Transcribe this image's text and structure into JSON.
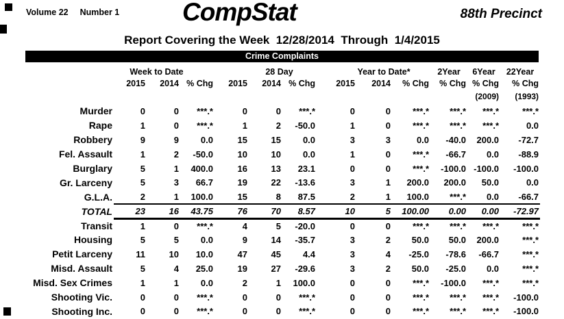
{
  "header": {
    "volume_label": "Volume 22",
    "number_label": "Number 1",
    "title": "CompStat",
    "precinct": "88th Precinct",
    "report_line": "Report Covering the Week  12/28/2014  Through  1/4/2015",
    "section_bar": "Crime Complaints"
  },
  "table": {
    "columns": {
      "group_week": "Week to Date",
      "group_28day": "28 Day",
      "group_ytd": "Year to Date*",
      "group_2year": "2Year",
      "group_6year": "6Year",
      "group_22year": "22Year",
      "sub_2015": "2015",
      "sub_2014": "2014",
      "sub_pct": "% Chg",
      "note_2009": "(2009)",
      "note_1993": "(1993)"
    },
    "rows": [
      {
        "label": "Murder",
        "total": false,
        "values": [
          "0",
          "0",
          "***.*",
          "0",
          "0",
          "***.*",
          "0",
          "0",
          "***.*",
          "***.*",
          "***.*",
          "***.*"
        ]
      },
      {
        "label": "Rape",
        "total": false,
        "values": [
          "1",
          "0",
          "***.*",
          "1",
          "2",
          "-50.0",
          "1",
          "0",
          "***.*",
          "***.*",
          "***.*",
          "0.0"
        ]
      },
      {
        "label": "Robbery",
        "total": false,
        "values": [
          "9",
          "9",
          "0.0",
          "15",
          "15",
          "0.0",
          "3",
          "3",
          "0.0",
          "-40.0",
          "200.0",
          "-72.7"
        ]
      },
      {
        "label": "Fel. Assault",
        "total": false,
        "values": [
          "1",
          "2",
          "-50.0",
          "10",
          "10",
          "0.0",
          "1",
          "0",
          "***.*",
          "-66.7",
          "0.0",
          "-88.9"
        ]
      },
      {
        "label": "Burglary",
        "total": false,
        "values": [
          "5",
          "1",
          "400.0",
          "16",
          "13",
          "23.1",
          "0",
          "0",
          "***.*",
          "-100.0",
          "-100.0",
          "-100.0"
        ]
      },
      {
        "label": "Gr. Larceny",
        "total": false,
        "values": [
          "5",
          "3",
          "66.7",
          "19",
          "22",
          "-13.6",
          "3",
          "1",
          "200.0",
          "200.0",
          "50.0",
          "0.0"
        ]
      },
      {
        "label": "G.L.A.",
        "total": false,
        "values": [
          "2",
          "1",
          "100.0",
          "15",
          "8",
          "87.5",
          "2",
          "1",
          "100.0",
          "***.*",
          "0.0",
          "-66.7"
        ]
      },
      {
        "label": "TOTAL",
        "total": true,
        "values": [
          "23",
          "16",
          "43.75",
          "76",
          "70",
          "8.57",
          "10",
          "5",
          "100.00",
          "0.00",
          "0.00",
          "-72.97"
        ]
      },
      {
        "label": "Transit",
        "total": false,
        "values": [
          "1",
          "0",
          "***.*",
          "4",
          "5",
          "-20.0",
          "0",
          "0",
          "***.*",
          "***.*",
          "***.*",
          "***.*"
        ]
      },
      {
        "label": "Housing",
        "total": false,
        "values": [
          "5",
          "5",
          "0.0",
          "9",
          "14",
          "-35.7",
          "3",
          "2",
          "50.0",
          "50.0",
          "200.0",
          "***.*"
        ]
      },
      {
        "label": "Petit Larceny",
        "total": false,
        "values": [
          "11",
          "10",
          "10.0",
          "47",
          "45",
          "4.4",
          "3",
          "4",
          "-25.0",
          "-78.6",
          "-66.7",
          "***.*"
        ]
      },
      {
        "label": "Misd. Assault",
        "total": false,
        "values": [
          "5",
          "4",
          "25.0",
          "19",
          "27",
          "-29.6",
          "3",
          "2",
          "50.0",
          "-25.0",
          "0.0",
          "***.*"
        ]
      },
      {
        "label": "Misd. Sex Crimes",
        "total": false,
        "values": [
          "1",
          "1",
          "0.0",
          "2",
          "1",
          "100.0",
          "0",
          "0",
          "***.*",
          "-100.0",
          "***.*",
          "***.*"
        ]
      },
      {
        "label": "Shooting Vic.",
        "total": false,
        "values": [
          "0",
          "0",
          "***.*",
          "0",
          "0",
          "***.*",
          "0",
          "0",
          "***.*",
          "***.*",
          "***.*",
          "-100.0"
        ]
      },
      {
        "label": "Shooting Inc.",
        "total": false,
        "values": [
          "0",
          "0",
          "***.*",
          "0",
          "0",
          "***.*",
          "0",
          "0",
          "***.*",
          "***.*",
          "***.*",
          "-100.0"
        ]
      }
    ]
  }
}
